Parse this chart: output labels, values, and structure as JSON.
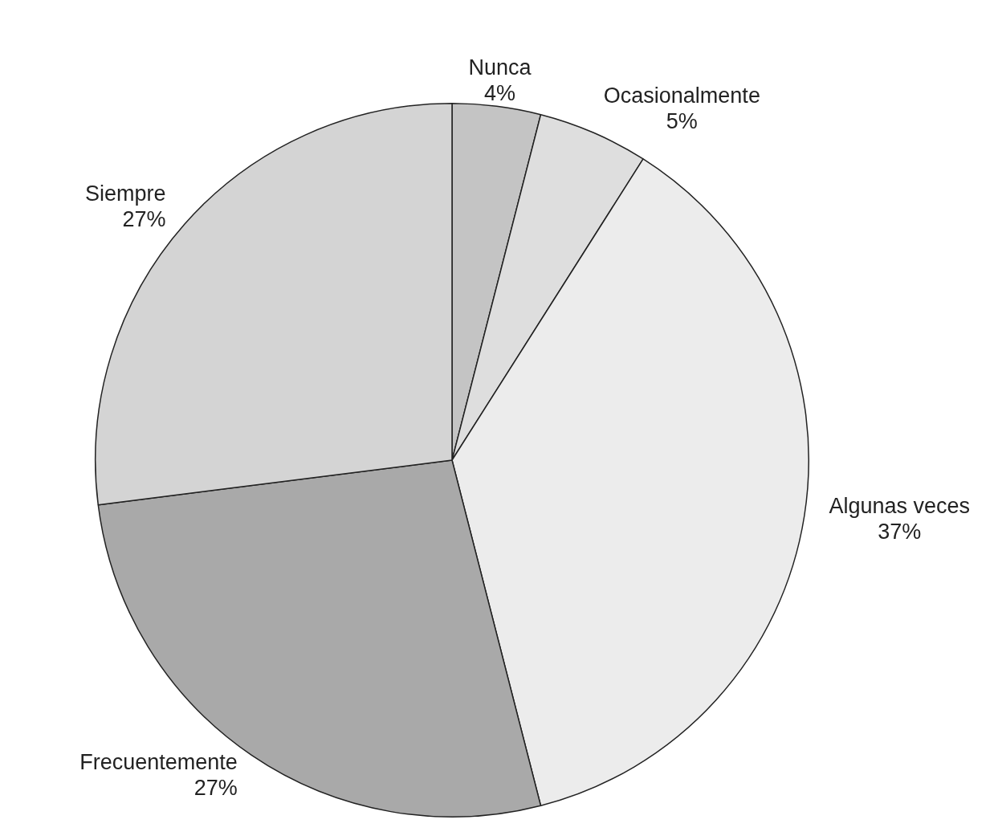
{
  "chart_data": {
    "type": "pie",
    "categories": [
      "Nunca",
      "Ocasionalmente",
      "Algunas veces",
      "Frecuentemente",
      "Siempre"
    ],
    "values": [
      4,
      5,
      37,
      27,
      27
    ],
    "colors": [
      "#c4c4c4",
      "#dedede",
      "#ececec",
      "#a9a9a9",
      "#d4d4d4"
    ],
    "value_labels": [
      "4%",
      "5%",
      "37%",
      "27%",
      "27%"
    ],
    "legend": false
  }
}
